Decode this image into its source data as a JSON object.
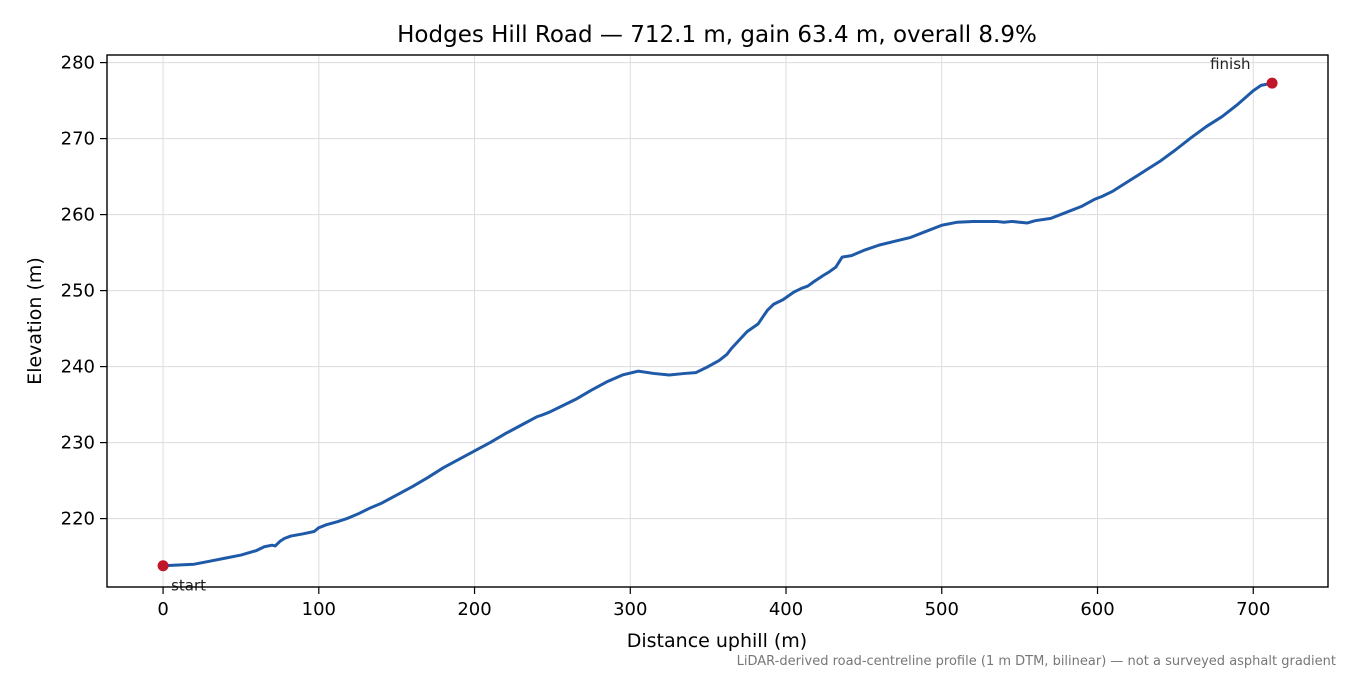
{
  "chart_data": {
    "type": "line",
    "title": "Hodges Hill Road — 712.1 m, gain 63.4 m, overall 8.9%",
    "xlabel": "Distance uphill (m)",
    "ylabel": "Elevation (m)",
    "xlim": [
      -36,
      748
    ],
    "ylim": [
      211,
      281
    ],
    "xticks": [
      0,
      100,
      200,
      300,
      400,
      500,
      600,
      700
    ],
    "yticks": [
      220,
      230,
      240,
      250,
      260,
      270,
      280
    ],
    "grid": true,
    "series": [
      {
        "color": "#1f5aa8",
        "x": [
          0,
          10,
          20,
          30,
          40,
          50,
          60,
          65,
          70,
          72,
          75,
          78,
          82,
          90,
          97,
          100,
          105,
          112,
          118,
          125,
          133,
          140,
          150,
          160,
          170,
          180,
          190,
          200,
          210,
          220,
          230,
          240,
          243,
          248,
          255,
          265,
          275,
          285,
          295,
          305,
          315,
          325,
          335,
          342,
          350,
          357,
          362,
          365,
          370,
          375,
          382,
          385,
          388,
          392,
          398,
          405,
          410,
          414,
          418,
          424,
          428,
          432,
          436,
          442,
          450,
          460,
          470,
          480,
          490,
          500,
          510,
          520,
          530,
          535,
          540,
          545,
          550,
          555,
          560,
          570,
          580,
          590,
          598,
          603,
          610,
          620,
          630,
          640,
          650,
          660,
          670,
          680,
          690,
          700,
          705,
          712.1
        ],
        "y": [
          213.8,
          213.9,
          214.0,
          214.4,
          214.8,
          215.2,
          215.8,
          216.3,
          216.5,
          216.4,
          217.0,
          217.4,
          217.7,
          218.0,
          218.3,
          218.8,
          219.2,
          219.6,
          220.0,
          220.6,
          221.4,
          222.0,
          223.1,
          224.2,
          225.4,
          226.7,
          227.8,
          228.9,
          230.0,
          231.2,
          232.3,
          233.4,
          233.6,
          234.0,
          234.7,
          235.7,
          236.9,
          238.0,
          238.9,
          239.4,
          239.1,
          238.9,
          239.1,
          239.2,
          240.0,
          240.8,
          241.6,
          242.4,
          243.5,
          244.6,
          245.6,
          246.5,
          247.4,
          248.2,
          248.8,
          249.8,
          250.3,
          250.6,
          251.2,
          252.0,
          252.5,
          253.1,
          254.4,
          254.6,
          255.3,
          256.0,
          256.5,
          257.0,
          257.8,
          258.6,
          259.0,
          259.1,
          259.1,
          259.1,
          259.0,
          259.1,
          259.0,
          258.9,
          259.2,
          259.5,
          260.3,
          261.1,
          262.0,
          262.4,
          263.1,
          264.4,
          265.7,
          267.0,
          268.5,
          270.1,
          271.6,
          272.9,
          274.5,
          276.3,
          277.0,
          277.3
        ]
      }
    ],
    "markers": [
      {
        "x": 0,
        "y": 213.8,
        "label": "start",
        "color": "#c0172b"
      },
      {
        "x": 712.1,
        "y": 277.3,
        "label": "finish",
        "color": "#c0172b"
      }
    ],
    "footnote": "LiDAR-derived road-centreline profile (1 m DTM, bilinear) — not a surveyed asphalt gradient"
  }
}
